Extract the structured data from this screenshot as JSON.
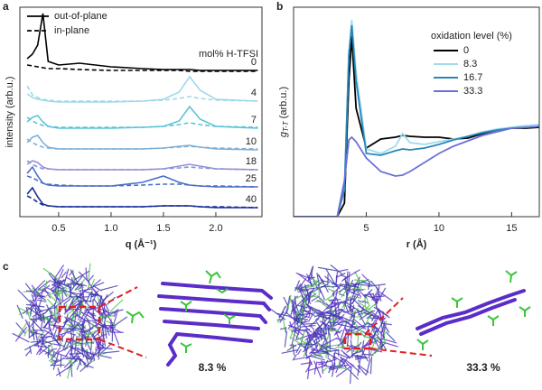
{
  "chart_data": [
    {
      "type": "line",
      "panel": "a",
      "y_label": "intensity (arb.u.)",
      "x_label": "q (Å⁻¹)",
      "xlim": [
        0.13,
        2.44
      ],
      "xticks": [
        0.5,
        {
          "value": 1,
          "label": "1.0"
        },
        1.5,
        {
          "value": 2,
          "label": "2.0"
        }
      ],
      "ylim": [
        0,
        23.2
      ],
      "legend": [
        {
          "name": "out-of-plane",
          "dash": false
        },
        {
          "name": "in-plane",
          "dash": true
        }
      ],
      "legend_title": "mol% H-TFSI",
      "x": [
        0.2,
        0.25,
        0.3,
        0.35,
        0.4,
        0.5,
        0.7,
        1.0,
        1.3,
        1.5,
        1.65,
        1.75,
        1.85,
        2.0,
        2.4
      ],
      "series": [
        {
          "name": "0",
          "color": "#000000",
          "out_of_plane": [
            17.5,
            18,
            19,
            22.5,
            17.2,
            16.8,
            17,
            16.6,
            16.4,
            16.3,
            16.3,
            16.3,
            16.2,
            16.2,
            16.2
          ],
          "in_plane": [
            16.8,
            16.7,
            16.6,
            16.5,
            16.4,
            16.4,
            16.3,
            16.2,
            16.2,
            16.2,
            16.2,
            16.1,
            16.1,
            16.1,
            16.1
          ]
        },
        {
          "name": "4",
          "color": "#9fd8ea",
          "out_of_plane": [
            13.6,
            13.2,
            13.0,
            12.9,
            12.8,
            12.7,
            12.7,
            12.7,
            12.8,
            13.0,
            13.8,
            15.5,
            14.0,
            13.0,
            12.8
          ],
          "in_plane": [
            14.5,
            13.5,
            13.2,
            13.0,
            12.9,
            12.8,
            12.8,
            12.8,
            12.8,
            12.9,
            13.1,
            13.3,
            13.1,
            12.9,
            12.8
          ]
        },
        {
          "name": "7",
          "color": "#5cc3d8",
          "out_of_plane": [
            10.5,
            11.0,
            11.2,
            10.5,
            10.0,
            9.8,
            9.8,
            9.8,
            9.9,
            10.0,
            10.6,
            12.2,
            10.8,
            10.0,
            9.8
          ],
          "in_plane": [
            11,
            10.6,
            10.3,
            10.1,
            10,
            9.9,
            9.9,
            9.9,
            9.9,
            10.0,
            10.2,
            10.4,
            10.2,
            10.0,
            9.9
          ]
        },
        {
          "name": "10",
          "color": "#7fb0d8",
          "out_of_plane": [
            8.2,
            8.8,
            9.0,
            8.2,
            7.7,
            7.5,
            7.5,
            7.5,
            7.5,
            7.6,
            7.8,
            7.9,
            7.7,
            7.5,
            7.4
          ],
          "in_plane": [
            8.6,
            8.2,
            7.9,
            7.7,
            7.6,
            7.5,
            7.5,
            7.5,
            7.5,
            7.6,
            7.7,
            7.8,
            7.7,
            7.6,
            7.5
          ]
        },
        {
          "name": "18",
          "color": "#9090d8",
          "out_of_plane": [
            5.8,
            6.2,
            6.0,
            5.5,
            5.3,
            5.2,
            5.2,
            5.2,
            5.2,
            5.3,
            5.6,
            5.8,
            5.6,
            5.3,
            5.2
          ],
          "in_plane": [
            6.2,
            5.8,
            5.5,
            5.3,
            5.3,
            5.2,
            5.2,
            5.2,
            5.2,
            5.3,
            5.4,
            5.5,
            5.4,
            5.3,
            5.2
          ]
        },
        {
          "name": "25",
          "color": "#4b6fc8",
          "out_of_plane": [
            4.8,
            5.5,
            4.5,
            3.7,
            3.5,
            3.4,
            3.4,
            3.4,
            3.8,
            4.5,
            3.8,
            3.5,
            3.4,
            3.3,
            3.3
          ],
          "in_plane": [
            4.5,
            4.3,
            4.0,
            3.7,
            3.6,
            3.5,
            3.4,
            3.4,
            3.5,
            3.6,
            3.6,
            3.5,
            3.4,
            3.4,
            3.3
          ]
        },
        {
          "name": "40",
          "color": "#1a2a9a",
          "out_of_plane": [
            2.5,
            3.2,
            2.2,
            1.4,
            1.2,
            1.1,
            1.1,
            1.1,
            1.1,
            1.2,
            1.2,
            1.2,
            1.1,
            1.0,
            1.0
          ],
          "in_plane": [
            2.3,
            2.0,
            1.6,
            1.3,
            1.2,
            1.1,
            1.1,
            1.1,
            1.1,
            1.2,
            1.2,
            1.2,
            1.1,
            1.1,
            1.0
          ]
        }
      ]
    },
    {
      "type": "line",
      "panel": "b",
      "y_label": {
        "symbol": "g",
        "subscript": "T-T",
        "unit": "(arb.u.)"
      },
      "x_label": "r (Å)",
      "xlim": [
        0,
        16.9
      ],
      "xticks": [
        5,
        10,
        15
      ],
      "ylim": [
        0,
        23.2
      ],
      "legend_title": "oxidation level (%)",
      "x": [
        0,
        3,
        3.5,
        3.8,
        4,
        4.3,
        5,
        6,
        7,
        7.5,
        8,
        9,
        10,
        11,
        12,
        13,
        14,
        15,
        16,
        16.9
      ],
      "series": [
        {
          "name": "0",
          "color": "#000000",
          "values": [
            0,
            0,
            1.5,
            15,
            20,
            12,
            7.6,
            8.6,
            8.8,
            9.0,
            8.9,
            8.8,
            8.8,
            8.6,
            8.7,
            9.2,
            9.6,
            9.8,
            9.8,
            9.9
          ]
        },
        {
          "name": "8.3",
          "color": "#9fdcec",
          "values": [
            0,
            0,
            3,
            18,
            21.8,
            16,
            7.5,
            7.0,
            7.8,
            9.2,
            8.2,
            8.0,
            8.3,
            8.6,
            8.9,
            9.4,
            9.7,
            9.9,
            10.1,
            10.2
          ]
        },
        {
          "name": "16.7",
          "color": "#2a86b8",
          "values": [
            0,
            0,
            3,
            18,
            21.2,
            15,
            7.0,
            6.8,
            7.3,
            7.5,
            7.4,
            7.6,
            8.0,
            8.5,
            8.9,
            9.3,
            9.6,
            9.8,
            9.9,
            10.0
          ]
        },
        {
          "name": "33.3",
          "color": "#6a70d8",
          "values": [
            0,
            0,
            4,
            8.5,
            8.8,
            8.3,
            6.5,
            5.0,
            4.5,
            4.6,
            5.0,
            6.0,
            7.0,
            7.8,
            8.4,
            9.0,
            9.4,
            9.8,
            9.9,
            10.0
          ]
        }
      ]
    }
  ],
  "panel_c": {
    "label": "c",
    "captions": [
      "8.3 %",
      "33.3 %"
    ]
  }
}
